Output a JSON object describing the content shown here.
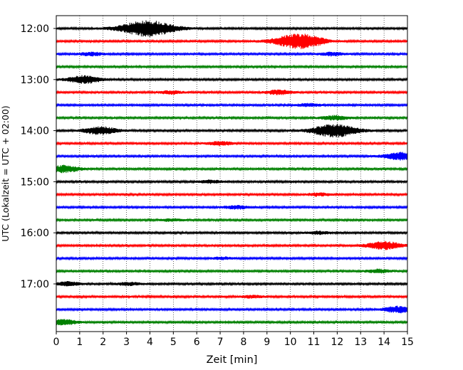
{
  "chart_data": {
    "type": "line",
    "xlabel": "Zeit  [min]",
    "ylabel": "UTC (Lokalzeit = UTC + 02:00)",
    "xlim": [
      0,
      15
    ],
    "x_ticks": [
      "0",
      "1",
      "2",
      "3",
      "4",
      "5",
      "6",
      "7",
      "8",
      "9",
      "10",
      "11",
      "12",
      "13",
      "14",
      "15"
    ],
    "y_tick_labels": [
      "12:00",
      "13:00",
      "14:00",
      "15:00",
      "16:00",
      "17:00"
    ],
    "y_tick_times": [
      "12:00",
      "13:00",
      "14:00",
      "15:00",
      "16:00",
      "17:00"
    ],
    "grid": "vertical-dotted",
    "colors": [
      "#000000",
      "#ff0000",
      "#0000ff",
      "#008000"
    ],
    "trace_interval_min": 15,
    "trace_start": "12:00",
    "trace_count": 24,
    "events": [
      {
        "trace": 0,
        "t": 3.9,
        "amp": 4.5
      },
      {
        "trace": 1,
        "t": 10.2,
        "amp": 3.5
      },
      {
        "trace": 1,
        "t": 10.9,
        "amp": 1.5
      },
      {
        "trace": 2,
        "t": 1.5,
        "amp": 0.9
      },
      {
        "trace": 2,
        "t": 11.8,
        "amp": 0.9
      },
      {
        "trace": 4,
        "t": 1.2,
        "amp": 2.1
      },
      {
        "trace": 5,
        "t": 4.9,
        "amp": 0.8
      },
      {
        "trace": 5,
        "t": 9.5,
        "amp": 1.2
      },
      {
        "trace": 6,
        "t": 10.8,
        "amp": 0.8
      },
      {
        "trace": 7,
        "t": 11.9,
        "amp": 1.2
      },
      {
        "trace": 8,
        "t": 1.9,
        "amp": 2.1
      },
      {
        "trace": 8,
        "t": 11.9,
        "amp": 3.6
      },
      {
        "trace": 9,
        "t": 7.0,
        "amp": 1.0
      },
      {
        "trace": 10,
        "t": 14.7,
        "amp": 2.0
      },
      {
        "trace": 11,
        "t": 0.3,
        "amp": 1.9
      },
      {
        "trace": 12,
        "t": 6.6,
        "amp": 0.8
      },
      {
        "trace": 13,
        "t": 11.2,
        "amp": 0.8
      },
      {
        "trace": 14,
        "t": 7.7,
        "amp": 0.9
      },
      {
        "trace": 15,
        "t": 4.9,
        "amp": 0.6
      },
      {
        "trace": 16,
        "t": 11.2,
        "amp": 0.8
      },
      {
        "trace": 17,
        "t": 14.0,
        "amp": 2.2
      },
      {
        "trace": 18,
        "t": 7.1,
        "amp": 0.6
      },
      {
        "trace": 19,
        "t": 13.8,
        "amp": 0.9
      },
      {
        "trace": 20,
        "t": 0.5,
        "amp": 1.1
      },
      {
        "trace": 20,
        "t": 3.1,
        "amp": 0.8
      },
      {
        "trace": 21,
        "t": 8.4,
        "amp": 0.7
      },
      {
        "trace": 22,
        "t": 14.6,
        "amp": 1.7
      },
      {
        "trace": 23,
        "t": 0.3,
        "amp": 1.5
      }
    ]
  }
}
